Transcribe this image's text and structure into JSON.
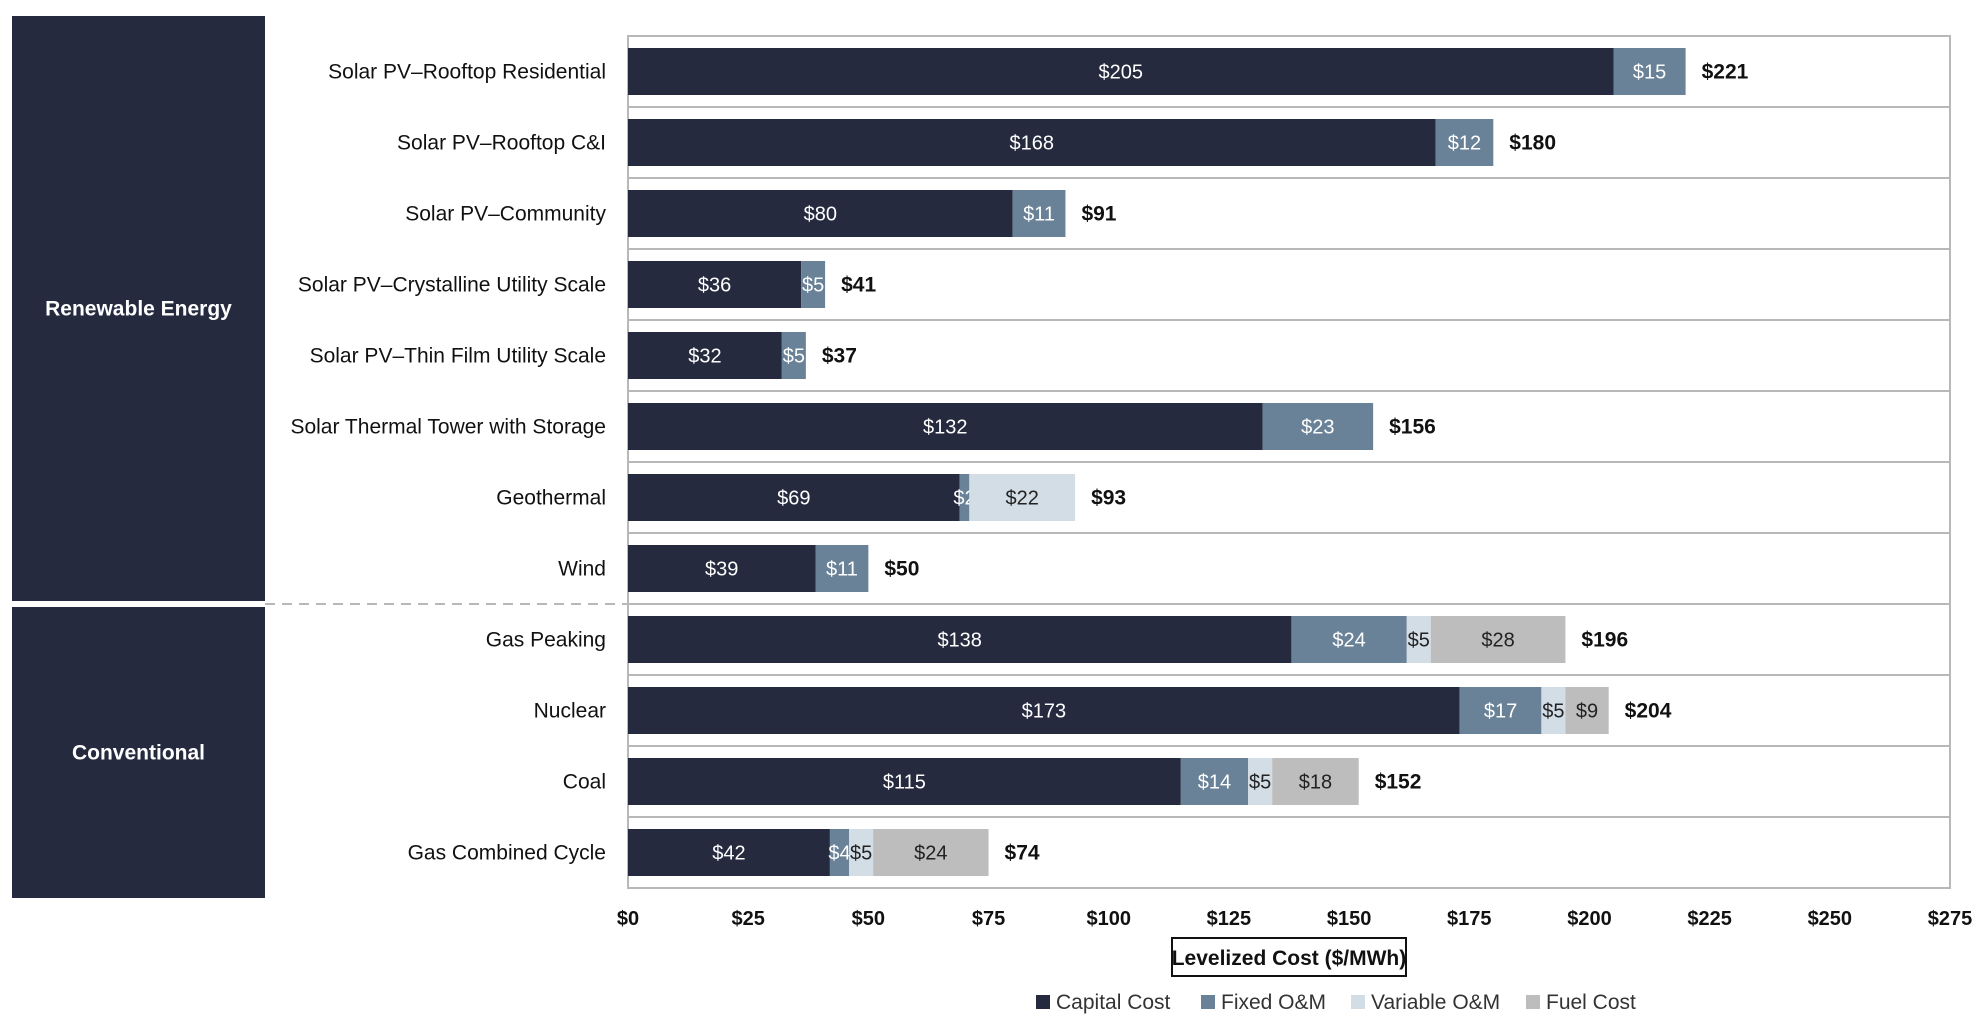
{
  "chart_data": {
    "type": "bar",
    "orientation": "horizontal",
    "stacked": true,
    "xlabel": "Levelized Cost ($/MWh)",
    "xlim": [
      0,
      275
    ],
    "xticks": [
      "$0",
      "$25",
      "$50",
      "$75",
      "$100",
      "$125",
      "$150",
      "$175",
      "$200",
      "$225",
      "$250",
      "$275"
    ],
    "xtick_values": [
      0,
      25,
      50,
      75,
      100,
      125,
      150,
      175,
      200,
      225,
      250,
      275
    ],
    "legend_position": "bottom",
    "groups": [
      {
        "name": "Renewable Energy",
        "categories": [
          "Solar PV–Rooftop Residential",
          "Solar PV–Rooftop C&I",
          "Solar PV–Community",
          "Solar PV–Crystalline Utility Scale",
          "Solar PV–Thin Film Utility Scale",
          "Solar Thermal Tower with Storage",
          "Geothermal",
          "Wind"
        ]
      },
      {
        "name": "Conventional",
        "categories": [
          "Gas Peaking",
          "Nuclear",
          "Coal",
          "Gas Combined Cycle"
        ]
      }
    ],
    "categories": [
      "Solar PV–Rooftop Residential",
      "Solar PV–Rooftop C&I",
      "Solar PV–Community",
      "Solar PV–Crystalline Utility Scale",
      "Solar PV–Thin Film Utility Scale",
      "Solar Thermal Tower with Storage",
      "Geothermal",
      "Wind",
      "Gas Peaking",
      "Nuclear",
      "Coal",
      "Gas Combined Cycle"
    ],
    "series": [
      {
        "name": "Capital Cost",
        "color": "#252a3f",
        "label_color": "#ffffff",
        "values": [
          205,
          168,
          80,
          36,
          32,
          132,
          69,
          39,
          138,
          173,
          115,
          42
        ],
        "labels": [
          "$205",
          "$168",
          "$80",
          "$36",
          "$32",
          "$132",
          "$69",
          "$39",
          "$138",
          "$173",
          "$115",
          "$42"
        ]
      },
      {
        "name": "Fixed O&M",
        "color": "#6a8297",
        "label_color": "#ffffff",
        "values": [
          15,
          12,
          11,
          5,
          5,
          23,
          2,
          11,
          24,
          17,
          14,
          4
        ],
        "labels": [
          "$15",
          "$12",
          "$11",
          "$5",
          "$5",
          "$23",
          "$2",
          "$11",
          "$24",
          "$17",
          "$14",
          "$4"
        ]
      },
      {
        "name": "Variable O&M",
        "color": "#d2dde6",
        "label_color": "#222222",
        "values": [
          0,
          0,
          0,
          0,
          0,
          0,
          22,
          0,
          5,
          5,
          5,
          5
        ],
        "labels": [
          "",
          "",
          "",
          "",
          "",
          "",
          "$22",
          "",
          "$5",
          "$5",
          "$5",
          "$5"
        ]
      },
      {
        "name": "Fuel Cost",
        "color": "#bdbdbd",
        "label_color": "#222222",
        "values": [
          0,
          0,
          0,
          0,
          0,
          0,
          0,
          0,
          28,
          9,
          18,
          24
        ],
        "labels": [
          "",
          "",
          "",
          "",
          "",
          "",
          "",
          "",
          "$28",
          "$9",
          "$18",
          "$24"
        ]
      }
    ],
    "totals": [
      221,
      180,
      91,
      41,
      37,
      156,
      93,
      50,
      196,
      204,
      152,
      74
    ],
    "total_labels": [
      "$221",
      "$180",
      "$91",
      "$41",
      "$37",
      "$156",
      "$93",
      "$50",
      "$196",
      "$204",
      "$152",
      "$74"
    ]
  }
}
